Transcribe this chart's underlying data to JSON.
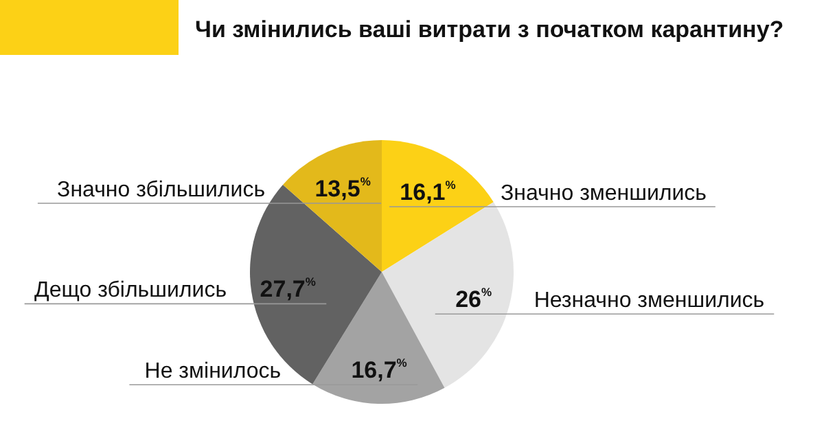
{
  "chart_data": {
    "type": "pie",
    "title": "Чи змінились ваші витрати з початком карантину?",
    "categories": [
      "Значно зменшились",
      "Незначно зменшились",
      "Не змінилось",
      "Дещо збільшились",
      "Значно збільшились"
    ],
    "values": [
      16.1,
      26,
      16.7,
      27.7,
      13.5
    ],
    "value_labels": [
      "16,1$^{%}$",
      "26$^{%}$",
      "16,7$^{%}$",
      "27,7$^{%}$",
      "13,5$^{%}$"
    ],
    "colors": [
      "#fcd116",
      "#e4e4e4",
      "#a3a3a3",
      "#626262",
      "#e3b91b"
    ]
  }
}
